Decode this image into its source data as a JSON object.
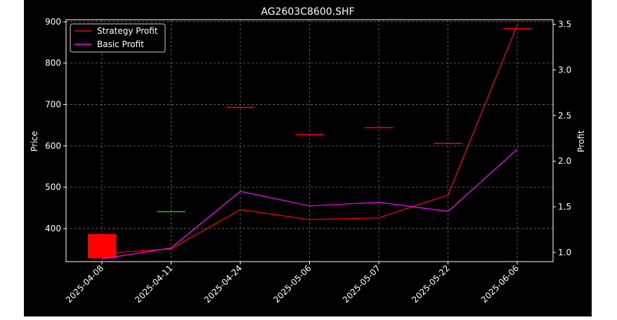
{
  "chart_data": {
    "type": "line",
    "title": "AG2603C8600.SHF",
    "ylabel_left": "Price",
    "ylabel_right": "Profit",
    "categories": [
      "2025-04-08",
      "2025-04-11",
      "2025-04-24",
      "2025-05-06",
      "2025-05-07",
      "2025-05-22",
      "2025-06-06"
    ],
    "price_axis": {
      "ylim": [
        320,
        905
      ],
      "ticks": [
        400,
        500,
        600,
        700,
        800,
        900
      ]
    },
    "profit_axis": {
      "ylim": [
        0.9,
        3.55
      ],
      "ticks": [
        1.0,
        1.5,
        2.0,
        2.5,
        3.0,
        3.5
      ]
    },
    "grid": true,
    "legend_position": "top-left",
    "candles": [
      {
        "date": "2025-04-08",
        "open": 387,
        "close": 328,
        "color": "#ff0000"
      },
      {
        "date": "2025-04-11",
        "open": 441,
        "close": 441,
        "color": "#00cc00"
      },
      {
        "date": "2025-04-24",
        "open": 693,
        "close": 693,
        "color": "#ff0000"
      },
      {
        "date": "2025-05-06",
        "open": 627,
        "close": 627,
        "color": "#ff0000"
      },
      {
        "date": "2025-05-07",
        "open": 644,
        "close": 644,
        "color": "#ff0000"
      },
      {
        "date": "2025-05-22",
        "open": 606,
        "close": 606,
        "color": "#ff0000"
      },
      {
        "date": "2025-06-06",
        "open": 883,
        "close": 883,
        "color": "#ff0000"
      }
    ],
    "series": [
      {
        "name": "Strategy Profit",
        "color": "#ff0000",
        "values": [
          0.99,
          1.04,
          1.47,
          1.36,
          1.38,
          1.63,
          3.49
        ]
      },
      {
        "name": "Basic Profit",
        "color": "#ff00ff",
        "values": [
          0.93,
          1.05,
          1.67,
          1.51,
          1.55,
          1.45,
          2.13
        ]
      }
    ]
  }
}
